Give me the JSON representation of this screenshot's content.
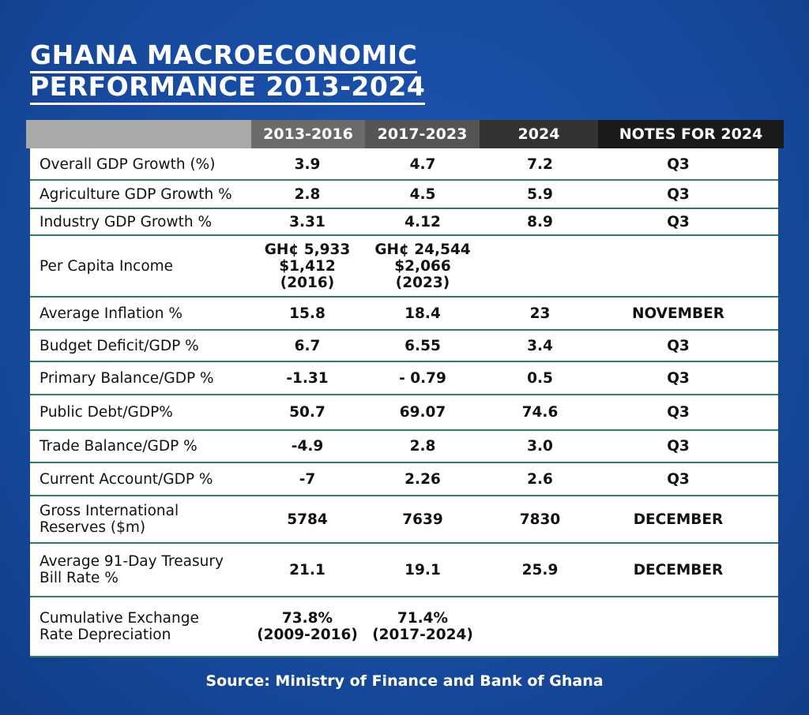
{
  "header": {
    "title_lines": [
      "GHANA MACROECONOMIC",
      "PERFORMANCE 2013-2024"
    ]
  },
  "table": {
    "columns": [
      null,
      "2013-2016",
      "2017-2023",
      "2024",
      "NOTES FOR 2024"
    ],
    "rows": [
      [
        [
          "Overall GDP Growth (%)"
        ],
        "3.9",
        "4.7",
        "7.2",
        "Q3"
      ],
      [
        [
          "Agriculture GDP Growth %"
        ],
        "2.8",
        "4.5",
        "5.9",
        "Q3"
      ],
      [
        [
          "Industry GDP Growth %"
        ],
        "3.31",
        "4.12",
        "8.9",
        "Q3"
      ],
      [
        [
          "Per Capita Income"
        ],
        [
          "GH¢ 5,933",
          "$1,412",
          "(2016)"
        ],
        [
          "GH¢ 24,544",
          "$2,066",
          "(2023)"
        ],
        null,
        null
      ],
      [
        [
          "Average Inflation %"
        ],
        "15.8",
        "18.4",
        "23",
        "NOVEMBER"
      ],
      [
        [
          "Budget Deficit/GDP %"
        ],
        "6.7",
        "6.55",
        "3.4",
        "Q3"
      ],
      [
        [
          "Primary Balance/GDP %"
        ],
        "-1.31",
        "- 0.79",
        "0.5",
        "Q3"
      ],
      [
        [
          "Public Debt/GDP%"
        ],
        "50.7",
        "69.07",
        "74.6",
        "Q3"
      ],
      [
        [
          "Trade Balance/GDP %"
        ],
        "-4.9",
        "2.8",
        "3.0",
        "Q3"
      ],
      [
        [
          "Current Account/GDP %"
        ],
        "-7",
        "2.26",
        "2.6",
        "Q3"
      ],
      [
        [
          "Gross International",
          "Reserves ($m)"
        ],
        "5784",
        "7639",
        "7830",
        "DECEMBER"
      ],
      [
        [
          "Average 91-Day Treasury",
          "Bill Rate %"
        ],
        "21.1",
        "19.1",
        "25.9",
        "DECEMBER"
      ],
      [
        [
          "Cumulative Exchange",
          "Rate Depreciation"
        ],
        [
          "73.8%",
          "(2009-2016)"
        ],
        [
          "71.4%",
          "(2017-2024)"
        ],
        null,
        null
      ]
    ]
  },
  "footer": {
    "source": "Source: Ministry of Finance and Bank of Ghana"
  }
}
